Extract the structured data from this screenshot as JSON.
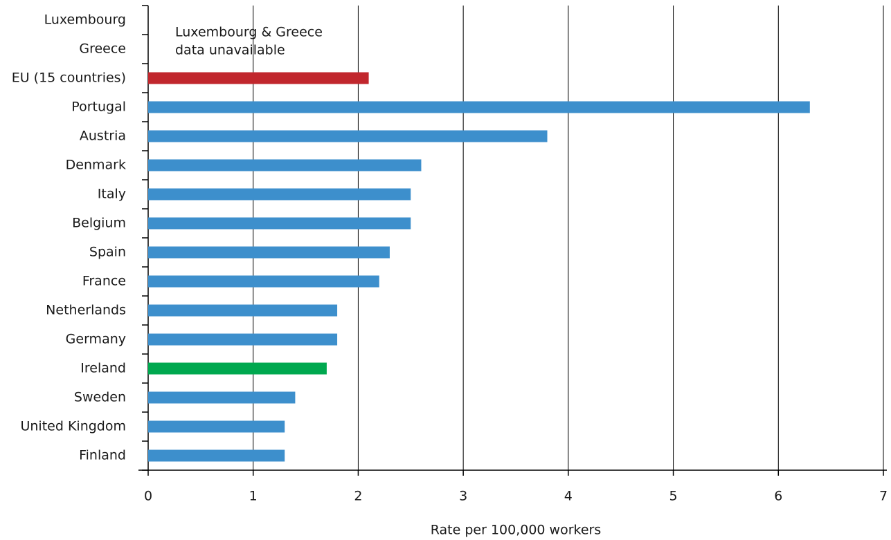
{
  "chart_data": {
    "type": "barh",
    "categories": [
      "Luxembourg",
      "Greece",
      "EU (15 countries)",
      "Portugal",
      "Austria",
      "Denmark",
      "Italy",
      "Belgium",
      "Spain",
      "France",
      "Netherlands",
      "Germany",
      "Ireland",
      "Sweden",
      "United Kingdom",
      "Finland"
    ],
    "values": [
      null,
      null,
      2.1,
      6.3,
      3.8,
      2.6,
      2.5,
      2.5,
      2.3,
      2.2,
      1.8,
      1.8,
      1.7,
      1.4,
      1.3,
      1.3
    ],
    "colors": [
      "#3d8fcc",
      "#3d8fcc",
      "#c1272d",
      "#3d8fcc",
      "#3d8fcc",
      "#3d8fcc",
      "#3d8fcc",
      "#3d8fcc",
      "#3d8fcc",
      "#3d8fcc",
      "#3d8fcc",
      "#3d8fcc",
      "#00a84f",
      "#3d8fcc",
      "#3d8fcc",
      "#3d8fcc"
    ],
    "xlim": [
      0,
      7
    ],
    "xticks": [
      0,
      1,
      2,
      3,
      4,
      5,
      6,
      7
    ],
    "grid": true,
    "xlabel": "Rate per 100,000 workers",
    "annotation": [
      "Luxembourg & Greece",
      "data unavailable"
    ]
  }
}
